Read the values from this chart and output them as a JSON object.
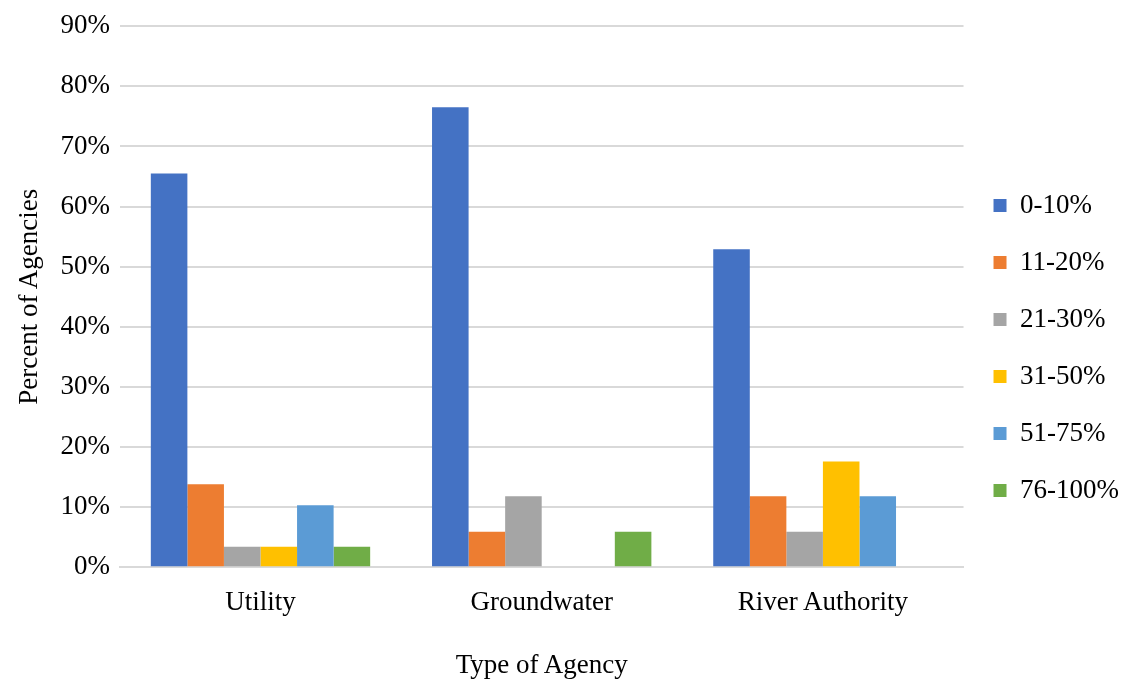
{
  "chart_data": {
    "type": "bar",
    "xlabel": "Type of Agency",
    "ylabel": "Percent of Agencies",
    "categories": [
      "Utility",
      "Groundwater",
      "River Authority"
    ],
    "series": [
      {
        "name": "0-10%",
        "color": "#4472c4",
        "values": [
          65.5,
          76.5,
          52.9
        ]
      },
      {
        "name": "11-20%",
        "color": "#ed7d31",
        "values": [
          13.8,
          5.9,
          11.8
        ]
      },
      {
        "name": "21-30%",
        "color": "#a5a5a5",
        "values": [
          3.4,
          11.8,
          5.9
        ]
      },
      {
        "name": "31-50%",
        "color": "#ffc000",
        "values": [
          3.4,
          0,
          17.6
        ]
      },
      {
        "name": "51-75%",
        "color": "#5b9bd5",
        "values": [
          10.3,
          0,
          11.8
        ]
      },
      {
        "name": "76-100%",
        "color": "#70ad47",
        "values": [
          3.4,
          5.9,
          0
        ]
      }
    ],
    "ylim": [
      0,
      90
    ],
    "yticks": [
      {
        "value": 0,
        "label": "0%"
      },
      {
        "value": 10,
        "label": "10%"
      },
      {
        "value": 20,
        "label": "20%"
      },
      {
        "value": 30,
        "label": "30%"
      },
      {
        "value": 40,
        "label": "40%"
      },
      {
        "value": 50,
        "label": "50%"
      },
      {
        "value": 60,
        "label": "60%"
      },
      {
        "value": 70,
        "label": "70%"
      },
      {
        "value": 80,
        "label": "80%"
      },
      {
        "value": 90,
        "label": "90%"
      }
    ],
    "grid": "y",
    "legend": "right"
  }
}
